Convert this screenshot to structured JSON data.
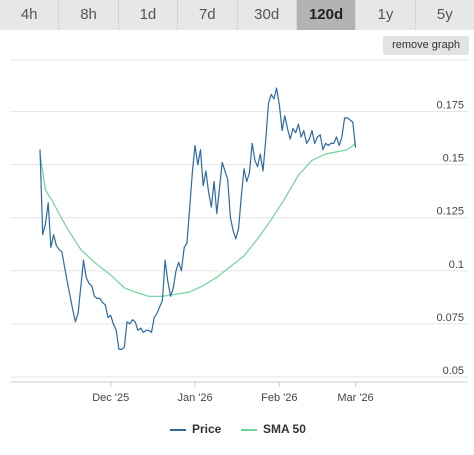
{
  "tabs": [
    {
      "label": "4h",
      "active": false
    },
    {
      "label": "8h",
      "active": false
    },
    {
      "label": "1d",
      "active": false
    },
    {
      "label": "7d",
      "active": false
    },
    {
      "label": "30d",
      "active": false
    },
    {
      "label": "120d",
      "active": true
    },
    {
      "label": "1y",
      "active": false
    },
    {
      "label": "5y",
      "active": false
    }
  ],
  "remove_graph_label": "remove graph",
  "colors": {
    "price": "#2c6aa6",
    "sma": "#6fd49a",
    "grid": "#e6e6e6",
    "tab_bg": "#e7e7e7",
    "tab_active_bg": "#b3b3b3"
  },
  "chart_data": {
    "type": "line",
    "x_ticks": [
      "Dec '25",
      "Jan '26",
      "Feb '26",
      "Mar '26"
    ],
    "y_ticks": [
      "0.05",
      "0.075",
      "0.1",
      "0.125",
      "0.15",
      "0.175"
    ],
    "ylim": [
      0.05,
      0.19
    ],
    "xlim": [
      "2025-11-05",
      "2026-03-01"
    ],
    "grid": true,
    "legend_placement": "bottom",
    "series": [
      {
        "name": "Price",
        "color": "#2c6aa6",
        "x": [
          "2025-11-05",
          "2025-11-06",
          "2025-11-07",
          "2025-11-08",
          "2025-11-09",
          "2025-11-10",
          "2025-11-11",
          "2025-11-12",
          "2025-11-13",
          "2025-11-15",
          "2025-11-17",
          "2025-11-18",
          "2025-11-19",
          "2025-11-21",
          "2025-11-22",
          "2025-11-23",
          "2025-11-24",
          "2025-11-25",
          "2025-11-26",
          "2025-11-27",
          "2025-11-28",
          "2025-11-29",
          "2025-11-30",
          "2025-12-01",
          "2025-12-02",
          "2025-12-03",
          "2025-12-04",
          "2025-12-05",
          "2025-12-06",
          "2025-12-07",
          "2025-12-08",
          "2025-12-09",
          "2025-12-10",
          "2025-12-11",
          "2025-12-12",
          "2025-12-13",
          "2025-12-14",
          "2025-12-15",
          "2025-12-16",
          "2025-12-17",
          "2025-12-18",
          "2025-12-19",
          "2025-12-20",
          "2025-12-21",
          "2025-12-22",
          "2025-12-23",
          "2025-12-24",
          "2025-12-25",
          "2025-12-26",
          "2025-12-27",
          "2025-12-28",
          "2025-12-29",
          "2025-12-30",
          "2025-12-31",
          "2026-01-01",
          "2026-01-02",
          "2026-01-03",
          "2026-01-04",
          "2026-01-05",
          "2026-01-06",
          "2026-01-07",
          "2026-01-08",
          "2026-01-09",
          "2026-01-10",
          "2026-01-11",
          "2026-01-12",
          "2026-01-13",
          "2026-01-14",
          "2026-01-15",
          "2026-01-16",
          "2026-01-17",
          "2026-01-18",
          "2026-01-19",
          "2026-01-20",
          "2026-01-21",
          "2026-01-22",
          "2026-01-23",
          "2026-01-24",
          "2026-01-25",
          "2026-01-26",
          "2026-01-27",
          "2026-01-28",
          "2026-01-29",
          "2026-01-30",
          "2026-01-31",
          "2026-02-01",
          "2026-02-02",
          "2026-02-03",
          "2026-02-04",
          "2026-02-05",
          "2026-02-06",
          "2026-02-07",
          "2026-02-08",
          "2026-02-09",
          "2026-02-10",
          "2026-02-11",
          "2026-02-12",
          "2026-02-13",
          "2026-02-14",
          "2026-02-15",
          "2026-02-16",
          "2026-02-17",
          "2026-02-18",
          "2026-02-19",
          "2026-02-20",
          "2026-02-21",
          "2026-02-22",
          "2026-02-23",
          "2026-02-24",
          "2026-02-25",
          "2026-02-26",
          "2026-02-27",
          "2026-02-28",
          "2026-03-01"
        ],
        "values": [
          0.157,
          0.117,
          0.122,
          0.132,
          0.111,
          0.117,
          0.112,
          0.11,
          0.109,
          0.095,
          0.082,
          0.076,
          0.08,
          0.105,
          0.097,
          0.094,
          0.093,
          0.088,
          0.087,
          0.087,
          0.085,
          0.084,
          0.078,
          0.079,
          0.075,
          0.072,
          0.063,
          0.063,
          0.064,
          0.076,
          0.075,
          0.077,
          0.076,
          0.072,
          0.073,
          0.071,
          0.072,
          0.072,
          0.071,
          0.078,
          0.08,
          0.083,
          0.086,
          0.105,
          0.095,
          0.088,
          0.092,
          0.1,
          0.104,
          0.1,
          0.111,
          0.113,
          0.129,
          0.146,
          0.159,
          0.15,
          0.157,
          0.14,
          0.147,
          0.137,
          0.13,
          0.142,
          0.127,
          0.139,
          0.151,
          0.147,
          0.143,
          0.125,
          0.119,
          0.115,
          0.12,
          0.135,
          0.148,
          0.142,
          0.146,
          0.16,
          0.152,
          0.149,
          0.155,
          0.147,
          0.162,
          0.179,
          0.183,
          0.181,
          0.186,
          0.178,
          0.166,
          0.173,
          0.167,
          0.162,
          0.167,
          0.165,
          0.169,
          0.163,
          0.166,
          0.16,
          0.162,
          0.166,
          0.16,
          0.163,
          0.164,
          0.157,
          0.16,
          0.159,
          0.16,
          0.16,
          0.163,
          0.159,
          0.163,
          0.172,
          0.172,
          0.171,
          0.17,
          0.158
        ]
      },
      {
        "name": "SMA 50",
        "color": "#6fd49a",
        "x": [
          "2025-11-05",
          "2025-11-07",
          "2025-11-09",
          "2025-11-12",
          "2025-11-15",
          "2025-11-20",
          "2025-11-25",
          "2025-12-01",
          "2025-12-06",
          "2025-12-10",
          "2025-12-15",
          "2025-12-20",
          "2025-12-25",
          "2025-12-30",
          "2026-01-04",
          "2026-01-09",
          "2026-01-14",
          "2026-01-19",
          "2026-01-24",
          "2026-01-29",
          "2026-02-03",
          "2026-02-08",
          "2026-02-13",
          "2026-02-18",
          "2026-02-22",
          "2026-02-26",
          "2026-03-01"
        ],
        "values": [
          0.155,
          0.138,
          0.134,
          0.127,
          0.12,
          0.11,
          0.104,
          0.098,
          0.092,
          0.09,
          0.088,
          0.088,
          0.089,
          0.09,
          0.093,
          0.097,
          0.102,
          0.107,
          0.115,
          0.124,
          0.134,
          0.145,
          0.152,
          0.155,
          0.156,
          0.157,
          0.16
        ]
      }
    ]
  },
  "legend": {
    "price_label": "Price",
    "sma_label": "SMA 50"
  }
}
